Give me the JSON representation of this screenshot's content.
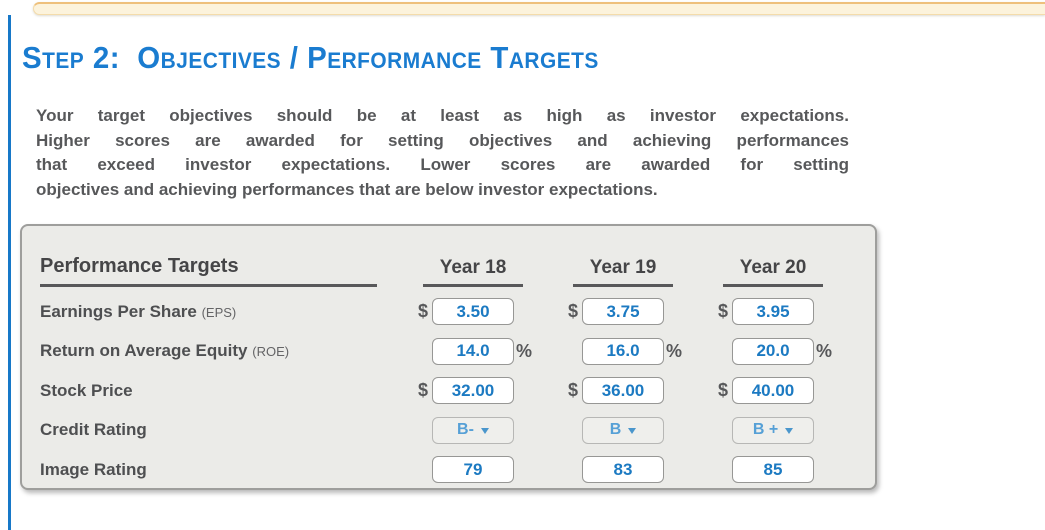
{
  "page": {
    "title": "Step 2:  Objectives / Performance Targets",
    "intro_lines": [
      "Your target objectives should be at least as high as investor expectations.",
      "Higher scores are awarded for setting objectives and achieving performances",
      "that exceed investor expectations. Lower scores are awarded for setting",
      "objectives and achieving performances that are below investor expectations."
    ]
  },
  "table": {
    "header": {
      "label": "Performance Targets",
      "years": [
        "Year 18",
        "Year 19",
        "Year 20"
      ]
    },
    "rows": [
      {
        "label": "Earnings Per Share",
        "abbr": "(EPS)",
        "prefix": "$",
        "unit": "",
        "control": "input",
        "values": [
          "3.50",
          "3.75",
          "3.95"
        ]
      },
      {
        "label": "Return on Average Equity",
        "abbr": "(ROE)",
        "prefix": "",
        "unit": "%",
        "control": "input",
        "values": [
          "14.0",
          "16.0",
          "20.0"
        ]
      },
      {
        "label": "Stock Price",
        "abbr": "",
        "prefix": "$",
        "unit": "",
        "control": "input",
        "values": [
          "32.00",
          "36.00",
          "40.00"
        ]
      },
      {
        "label": "Credit Rating",
        "abbr": "",
        "prefix": "",
        "unit": "",
        "control": "dropdown",
        "values": [
          "B-",
          "B",
          "B +"
        ]
      },
      {
        "label": "Image Rating",
        "abbr": "",
        "prefix": "",
        "unit": "",
        "control": "input",
        "values": [
          "79",
          "83",
          "85"
        ]
      }
    ]
  },
  "icons": {
    "dropdown_caret": "chevron-down-icon"
  },
  "colors": {
    "title_blue": "#1a7cd0",
    "value_blue": "#1c7ac2",
    "dropdown_blue": "#56a0d6",
    "accent_line": "#1778c8",
    "banner_bg": "#fcf3dc",
    "banner_border": "#eec07c",
    "panel_bg": "#ebebe8",
    "text_gray": "#57585a"
  }
}
